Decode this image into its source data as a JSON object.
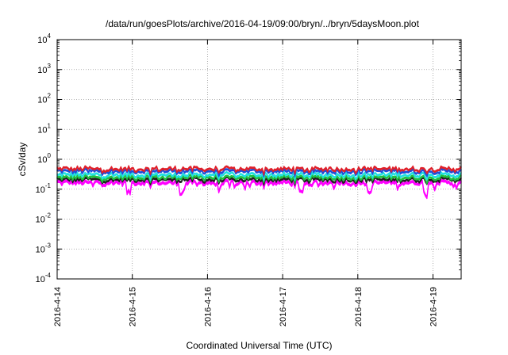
{
  "chart_data": {
    "type": "area",
    "title": "/data/run/goesPlots/archive/2016-04-19/09:00/bryn/../bryn/5daysMoon.plot",
    "xlabel": "Coordinated Universal Time (UTC)",
    "ylabel": "cSv/day",
    "yscale": "log",
    "ylim": [
      0.0001,
      10000
    ],
    "xlim": [
      "2016-04-14",
      "2016-04-19 09:00"
    ],
    "x_ticks": [
      "2016-4-14",
      "2016-4-15",
      "2016-4-16",
      "2016-4-17",
      "2016-4-18",
      "2016-4-19"
    ],
    "y_ticks": [
      {
        "base": "10",
        "exp": "4"
      },
      {
        "base": "10",
        "exp": "3"
      },
      {
        "base": "10",
        "exp": "2"
      },
      {
        "base": "10",
        "exp": "1"
      },
      {
        "base": "10",
        "exp": "0"
      },
      {
        "base": "10",
        "exp": "-1"
      },
      {
        "base": "10",
        "exp": "-2"
      },
      {
        "base": "10",
        "exp": "-3"
      },
      {
        "base": "10",
        "exp": "-4"
      }
    ],
    "grid": true,
    "series": [
      {
        "color": "#e0202a",
        "baseline": 0.5
      },
      {
        "color": "#1e4ed8",
        "baseline": 0.42
      },
      {
        "color": "#20e0e0",
        "baseline": 0.32
      },
      {
        "color": "#20c040",
        "baseline": 0.26
      },
      {
        "color": "#202020",
        "baseline": 0.22
      },
      {
        "color": "#ff00ff",
        "baseline": 0.18
      }
    ]
  }
}
